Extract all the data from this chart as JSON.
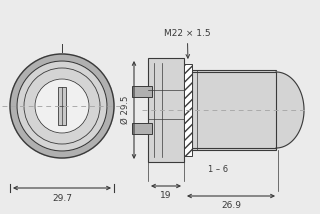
{
  "bg_color": "#ebebeb",
  "line_color": "#3a3a3a",
  "fill_light": "#d4d4d4",
  "fill_mid": "#b0b0b0",
  "fill_dark": "#888888",
  "fill_white": "#f0f0f0",
  "centerline_color": "#aaaaaa",
  "m22_label": "M22 × 1.5",
  "dim_29p5": "Ø 29.5",
  "dim_19": "19",
  "dim_26p9": "26.9",
  "dim_1_6": "1 – 6",
  "dim_29p7": "29.7",
  "figw": 3.2,
  "figh": 2.14,
  "dpi": 100
}
